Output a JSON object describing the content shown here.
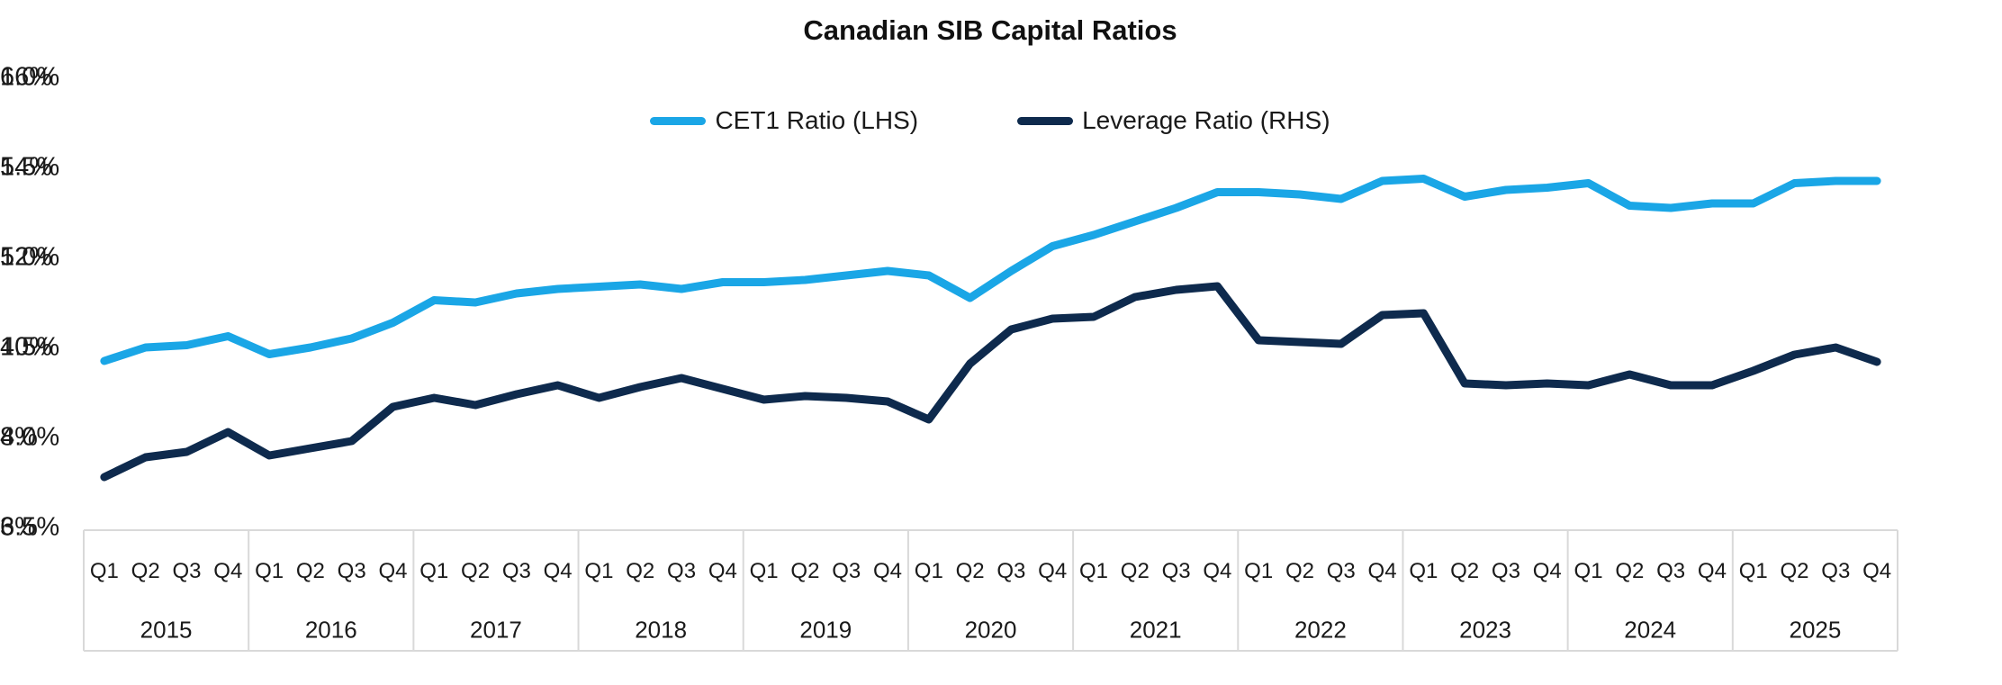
{
  "title": "Canadian SIB Capital Ratios",
  "legend": [
    {
      "label": "CET1 Ratio (LHS)",
      "color": "#1AA6E6"
    },
    {
      "label": "Leverage Ratio (RHS)",
      "color": "#0E2A4D"
    }
  ],
  "left_axis": {
    "tick_labels": [
      "16%",
      "14%",
      "12%",
      "10%",
      "8%",
      "6%"
    ],
    "min": 6,
    "max": 16
  },
  "right_axis": {
    "tick_labels": [
      "6.0%",
      "5.5%",
      "5.0%",
      "4.5%",
      "4.0%",
      "3.5%"
    ],
    "min": 3.5,
    "max": 6.0
  },
  "x_axis": {
    "quarter_labels": [
      "Q1",
      "Q2",
      "Q3",
      "Q4"
    ],
    "year_labels": [
      "2015",
      "2016",
      "2017",
      "2018",
      "2019",
      "2020",
      "2021",
      "2022",
      "2023",
      "2024",
      "2025"
    ]
  },
  "chart_data": {
    "type": "line",
    "title": "Canadian SIB Capital Ratios",
    "categories": [
      "2015 Q1",
      "2015 Q2",
      "2015 Q3",
      "2015 Q4",
      "2016 Q1",
      "2016 Q2",
      "2016 Q3",
      "2016 Q4",
      "2017 Q1",
      "2017 Q2",
      "2017 Q3",
      "2017 Q4",
      "2018 Q1",
      "2018 Q2",
      "2018 Q3",
      "2018 Q4",
      "2019 Q1",
      "2019 Q2",
      "2019 Q3",
      "2019 Q4",
      "2020 Q1",
      "2020 Q2",
      "2020 Q3",
      "2020 Q4",
      "2021 Q1",
      "2021 Q2",
      "2021 Q3",
      "2021 Q4",
      "2022 Q1",
      "2022 Q2",
      "2022 Q3",
      "2022 Q4",
      "2023 Q1",
      "2023 Q2",
      "2023 Q3",
      "2023 Q4",
      "2024 Q1",
      "2024 Q2",
      "2024 Q3",
      "2024 Q4",
      "2025 Q1",
      "2025 Q2",
      "2025 Q3",
      "2025 Q4"
    ],
    "series": [
      {
        "name": "CET1 Ratio (LHS)",
        "axis": "left",
        "color": "#1AA6E6",
        "values": [
          9.7,
          10.0,
          10.05,
          10.25,
          9.85,
          10.0,
          10.2,
          10.55,
          11.05,
          11.0,
          11.2,
          11.3,
          11.35,
          11.4,
          11.3,
          11.45,
          11.45,
          11.5,
          11.6,
          11.7,
          11.6,
          11.1,
          11.7,
          12.25,
          12.5,
          12.8,
          13.1,
          13.45,
          13.45,
          13.4,
          13.3,
          13.7,
          13.75,
          13.35,
          13.5,
          13.55,
          13.65,
          13.15,
          13.1,
          13.2,
          13.2,
          13.65,
          13.7,
          13.7
        ]
      },
      {
        "name": "Leverage Ratio (RHS)",
        "axis": "right",
        "color": "#0E2A4D",
        "values": [
          3.78,
          3.89,
          3.92,
          4.03,
          3.9,
          3.94,
          3.98,
          4.17,
          4.22,
          4.18,
          4.24,
          4.29,
          4.22,
          4.28,
          4.33,
          4.27,
          4.21,
          4.23,
          4.22,
          4.2,
          4.1,
          4.41,
          4.6,
          4.66,
          4.67,
          4.78,
          4.82,
          4.84,
          4.54,
          4.53,
          4.52,
          4.68,
          4.69,
          4.3,
          4.29,
          4.3,
          4.29,
          4.35,
          4.29,
          4.29,
          4.37,
          4.46,
          4.5,
          4.42
        ]
      }
    ],
    "left_ylim": [
      6,
      16
    ],
    "right_ylim": [
      3.5,
      6.0
    ],
    "grid": false,
    "legend_position": "top"
  },
  "style": {
    "axis_border_color": "#D9D9D9",
    "background": "#ffffff",
    "line_width": 9
  }
}
